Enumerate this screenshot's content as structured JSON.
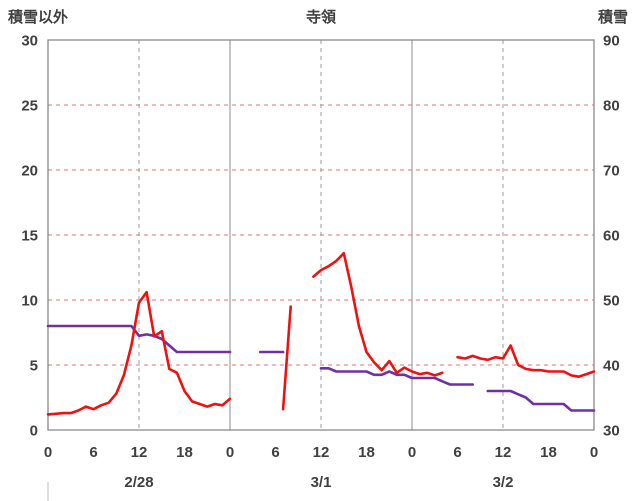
{
  "chart_data": {
    "type": "line",
    "title": "寺領",
    "left_axis": {
      "label": "積雪以外",
      "min": 0,
      "max": 30,
      "ticks": [
        0,
        5,
        10,
        15,
        20,
        25,
        30
      ],
      "gridlines": [
        5,
        10,
        15,
        20,
        25
      ]
    },
    "right_axis": {
      "label": "積雪",
      "min": 30,
      "max": 90,
      "ticks": [
        30,
        40,
        50,
        60,
        70,
        80,
        90
      ]
    },
    "x_axis": {
      "hours_span": 72,
      "tick_interval": 6,
      "tick_labels": [
        "0",
        "6",
        "12",
        "18",
        "0",
        "6",
        "12",
        "18",
        "0",
        "6",
        "12",
        "18",
        "0"
      ],
      "gridlines": [
        {
          "hour": 12,
          "style": "dash"
        },
        {
          "hour": 24,
          "style": "solid"
        },
        {
          "hour": 36,
          "style": "dash"
        },
        {
          "hour": 48,
          "style": "solid"
        },
        {
          "hour": 60,
          "style": "dash"
        }
      ],
      "date_labels": [
        {
          "label": "2/28",
          "center_hour": 12
        },
        {
          "label": "3/1",
          "center_hour": 36
        },
        {
          "label": "3/2",
          "center_hour": 60
        }
      ]
    },
    "series": [
      {
        "name": "積雪",
        "axis": "right",
        "color": "#7030a0",
        "values": [
          46,
          46,
          46,
          46,
          46,
          46,
          46,
          46,
          46,
          46,
          46,
          46,
          44.5,
          44.7,
          44.5,
          44,
          43,
          42,
          42,
          42,
          42,
          42,
          42,
          42,
          42,
          null,
          null,
          null,
          42,
          42,
          42,
          42,
          null,
          null,
          null,
          null,
          39.5,
          39.5,
          39,
          39,
          39,
          39,
          39,
          38.5,
          38.5,
          39,
          38.5,
          38.5,
          38,
          38,
          38,
          38,
          37.5,
          37,
          37,
          37,
          37,
          null,
          36,
          36,
          36,
          36,
          35.5,
          35,
          34,
          34,
          34,
          34,
          34,
          33,
          33,
          33,
          33
        ]
      },
      {
        "name": "積雪以外",
        "axis": "left",
        "color": "#ee1111",
        "values": [
          1.2,
          1.25,
          1.3,
          1.3,
          1.5,
          1.8,
          1.6,
          1.9,
          2.1,
          2.8,
          4.2,
          6.5,
          9.8,
          10.6,
          7.2,
          7.6,
          4.7,
          4.4,
          3.0,
          2.2,
          2.0,
          1.8,
          2.0,
          1.9,
          2.4,
          null,
          null,
          null,
          null,
          null,
          null,
          1.6,
          9.5,
          null,
          null,
          11.8,
          12.3,
          12.6,
          13.0,
          13.6,
          11.0,
          8.0,
          6.0,
          5.2,
          4.6,
          5.3,
          4.4,
          4.8,
          4.5,
          4.3,
          4.4,
          4.2,
          4.4,
          null,
          5.6,
          5.5,
          5.7,
          5.5,
          5.4,
          5.6,
          5.5,
          6.5,
          5.0,
          4.7,
          4.6,
          4.6,
          4.5,
          4.5,
          4.5,
          4.2,
          4.1,
          4.3,
          4.5
        ]
      }
    ],
    "style": {
      "grid_h_color": "#e57373",
      "grid_v_solid_color": "#8c8c8c",
      "grid_v_dash_color": "#9e9e9e",
      "border_color": "#808080",
      "separator_color": "#bfbfbf",
      "text_color": "#404040"
    }
  }
}
